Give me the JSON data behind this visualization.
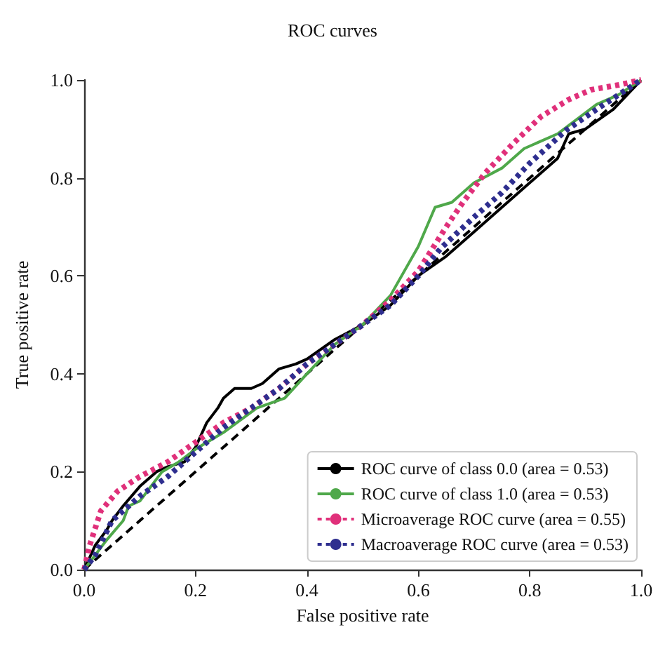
{
  "chart_data": {
    "type": "line",
    "title": "ROC curves",
    "xlabel": "False positive rate",
    "ylabel": "True positive rate",
    "xlim": [
      0,
      1
    ],
    "ylim": [
      0,
      1
    ],
    "xticks": [
      {
        "value": 0,
        "label": "0.0"
      },
      {
        "value": 0.2,
        "label": "0.2"
      },
      {
        "value": 0.4,
        "label": "0.4"
      },
      {
        "value": 0.6,
        "label": "0.6"
      },
      {
        "value": 0.8,
        "label": "0.8"
      },
      {
        "value": 1,
        "label": "1.0"
      }
    ],
    "yticks": [
      {
        "value": 0,
        "label": "0.0"
      },
      {
        "value": 0.2,
        "label": "0.2"
      },
      {
        "value": 0.4,
        "label": "0.4"
      },
      {
        "value": 0.6,
        "label": "0.6"
      },
      {
        "value": 0.8,
        "label": "0.8"
      },
      {
        "value": 1,
        "label": "1.0"
      }
    ],
    "grid": false,
    "legend": "bottom right",
    "marker": "none",
    "series": [
      {
        "name": "ROC curve of class 0.0 (area = 0.53)",
        "color": "#000000",
        "line_style": "solid",
        "x": [
          0,
          0.02,
          0.04,
          0.05,
          0.07,
          0.1,
          0.13,
          0.15,
          0.18,
          0.2,
          0.22,
          0.24,
          0.25,
          0.27,
          0.3,
          0.32,
          0.35,
          0.38,
          0.4,
          0.45,
          0.5,
          0.55,
          0.6,
          0.65,
          0.7,
          0.75,
          0.8,
          0.85,
          0.87,
          0.9,
          0.95,
          1
        ],
        "values": [
          0,
          0.05,
          0.08,
          0.1,
          0.13,
          0.17,
          0.2,
          0.21,
          0.22,
          0.25,
          0.3,
          0.33,
          0.35,
          0.37,
          0.37,
          0.38,
          0.41,
          0.42,
          0.43,
          0.47,
          0.5,
          0.54,
          0.6,
          0.64,
          0.69,
          0.74,
          0.79,
          0.84,
          0.89,
          0.9,
          0.94,
          1
        ]
      },
      {
        "name": "ROC curve of class 1.0 (area = 0.53)",
        "color": "#4fa84a",
        "line_style": "solid",
        "x": [
          0,
          0.04,
          0.07,
          0.08,
          0.1,
          0.14,
          0.17,
          0.2,
          0.25,
          0.31,
          0.36,
          0.4,
          0.45,
          0.5,
          0.55,
          0.6,
          0.63,
          0.66,
          0.7,
          0.75,
          0.79,
          0.85,
          0.92,
          0.96,
          1
        ],
        "values": [
          0,
          0.06,
          0.1,
          0.13,
          0.14,
          0.2,
          0.22,
          0.246,
          0.28,
          0.33,
          0.35,
          0.4,
          0.46,
          0.5,
          0.56,
          0.66,
          0.74,
          0.75,
          0.79,
          0.82,
          0.86,
          0.89,
          0.95,
          0.97,
          1
        ]
      },
      {
        "name": "Microaverage ROC curve (area = 0.55)",
        "color": "#e0307a",
        "line_style": "dotted",
        "x": [
          0,
          0.01,
          0.03,
          0.06,
          0.1,
          0.15,
          0.2,
          0.25,
          0.3,
          0.35,
          0.4,
          0.45,
          0.5,
          0.55,
          0.6,
          0.65,
          0.68,
          0.72,
          0.77,
          0.82,
          0.87,
          0.91,
          0.96,
          1
        ],
        "values": [
          0,
          0.05,
          0.12,
          0.16,
          0.19,
          0.22,
          0.26,
          0.3,
          0.33,
          0.37,
          0.42,
          0.46,
          0.5,
          0.55,
          0.61,
          0.7,
          0.75,
          0.81,
          0.87,
          0.925,
          0.96,
          0.98,
          0.99,
          1
        ]
      },
      {
        "name": "Macroaverage ROC curve (area = 0.53)",
        "color": "#2e2e8f",
        "line_style": "dotted",
        "x": [
          0,
          0.02,
          0.05,
          0.1,
          0.15,
          0.2,
          0.25,
          0.3,
          0.35,
          0.4,
          0.45,
          0.5,
          0.55,
          0.6,
          0.64,
          0.7,
          0.75,
          0.8,
          0.865,
          0.92,
          0.96,
          1
        ],
        "values": [
          0,
          0.03,
          0.1,
          0.15,
          0.19,
          0.24,
          0.29,
          0.33,
          0.37,
          0.42,
          0.46,
          0.5,
          0.54,
          0.6,
          0.656,
          0.72,
          0.77,
          0.83,
          0.897,
          0.94,
          0.97,
          1
        ]
      },
      {
        "color": "#000000",
        "line_style": "dashed",
        "x": [
          0,
          1
        ],
        "values": [
          0,
          1
        ]
      }
    ]
  }
}
